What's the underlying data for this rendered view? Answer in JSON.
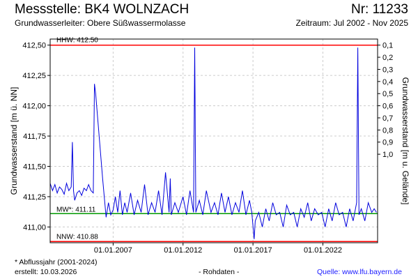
{
  "header": {
    "title_left": "Messstelle: BK4 WOLNZACH",
    "title_right": "Nr: 11233",
    "subtitle_left": "Grundwasserleiter:  Obere Süßwassermolasse",
    "subtitle_right": "Zeitraum: Jul 2002 - Nov 2025"
  },
  "footer": {
    "note": "* Abflussjahr (2001-2024)",
    "created": "erstellt:  10.03.2026",
    "center": "- Rohdaten -",
    "source": "Quelle:  www.lfu.bayern.de"
  },
  "colors": {
    "series": "#0000dd",
    "hhw_line": "#ff0000",
    "nnw_line": "#ff0000",
    "mw_line": "#009900",
    "grid": "#cccccc"
  },
  "chart_data": {
    "type": "line",
    "ylabel": "Grundwasserstand [m ü. NN]",
    "y2label": "Grundwasserstand [m u. Gelände]",
    "ylim": [
      410.87,
      412.55
    ],
    "xlim": [
      "2002-07-01",
      "2025-11-30"
    ],
    "yticks": [
      {
        "value": 411.0,
        "label": "411,00"
      },
      {
        "value": 411.25,
        "label": "411,25"
      },
      {
        "value": 411.5,
        "label": "411,50"
      },
      {
        "value": 411.75,
        "label": "411,75"
      },
      {
        "value": 412.0,
        "label": "412,00"
      },
      {
        "value": 412.25,
        "label": "412,25"
      },
      {
        "value": 412.5,
        "label": "412,50"
      }
    ],
    "y2ticks": [
      {
        "value": 412.5,
        "label": "0,1"
      },
      {
        "value": 412.4,
        "label": "0,2"
      },
      {
        "value": 412.3,
        "label": "0,3"
      },
      {
        "value": 412.2,
        "label": "0,4"
      },
      {
        "value": 412.1,
        "label": "0,5"
      },
      {
        "value": 412.0,
        "label": "0,6"
      },
      {
        "value": 411.9,
        "label": "0,7"
      },
      {
        "value": 411.8,
        "label": "0,8"
      },
      {
        "value": 411.7,
        "label": "0,9"
      },
      {
        "value": 411.6,
        "label": "1,0"
      }
    ],
    "xticks": [
      {
        "value": "2007-01-01",
        "label": "01.01.2007"
      },
      {
        "value": "2012-01-01",
        "label": "01.01.2012"
      },
      {
        "value": "2017-01-01",
        "label": "01.01.2017"
      },
      {
        "value": "2022-01-01",
        "label": "01.01.2022"
      }
    ],
    "reference_lines": [
      {
        "name": "HHW",
        "label": "HHW: 412.50",
        "value": 412.5
      },
      {
        "name": "MW",
        "label": "MW*: 411.11",
        "value": 411.11
      },
      {
        "name": "NNW",
        "label": "NNW: 410.88",
        "value": 410.88
      }
    ],
    "grid": true,
    "series": [
      {
        "x": [
          "2002-07-01",
          "2002-09-01",
          "2002-11-01",
          "2003-01-01",
          "2003-03-01",
          "2003-05-01",
          "2003-07-01",
          "2003-09-01",
          "2003-11-01",
          "2004-01-01",
          "2004-02-01",
          "2004-03-01",
          "2004-04-01",
          "2004-06-01",
          "2004-08-01",
          "2004-10-01",
          "2004-12-01",
          "2005-02-01",
          "2005-04-01",
          "2005-06-01",
          "2005-08-01",
          "2005-09-01",
          "2005-10-01",
          "2006-01-01",
          "2006-04-01",
          "2006-07-01",
          "2006-09-01",
          "2006-11-01",
          "2007-01-01",
          "2007-03-01",
          "2007-05-01",
          "2007-07-01",
          "2007-09-01",
          "2007-11-01",
          "2008-01-01",
          "2008-04-01",
          "2008-07-01",
          "2008-10-01",
          "2009-01-01",
          "2009-04-01",
          "2009-07-01",
          "2009-10-01",
          "2010-01-01",
          "2010-04-01",
          "2010-07-01",
          "2010-10-01",
          "2011-01-01",
          "2011-02-01",
          "2011-03-01",
          "2011-06-01",
          "2011-09-01",
          "2012-01-01",
          "2012-04-01",
          "2012-07-01",
          "2012-10-01",
          "2012-11-01",
          "2012-12-01",
          "2013-03-01",
          "2013-06-01",
          "2013-09-01",
          "2014-01-01",
          "2014-04-01",
          "2014-07-01",
          "2014-10-01",
          "2015-01-01",
          "2015-04-01",
          "2015-07-01",
          "2015-10-01",
          "2016-01-01",
          "2016-04-01",
          "2016-07-01",
          "2016-10-01",
          "2016-12-01",
          "2017-02-01",
          "2017-03-01",
          "2017-06-01",
          "2017-09-01",
          "2017-12-01",
          "2018-03-01",
          "2018-06-01",
          "2018-09-01",
          "2018-12-01",
          "2019-03-01",
          "2019-06-01",
          "2019-09-01",
          "2019-12-01",
          "2020-03-01",
          "2020-06-01",
          "2020-09-01",
          "2020-12-01",
          "2021-03-01",
          "2021-06-01",
          "2021-09-01",
          "2021-12-01",
          "2022-03-01",
          "2022-06-01",
          "2022-09-01",
          "2022-12-01",
          "2023-03-01",
          "2023-06-01",
          "2023-09-01",
          "2023-12-01",
          "2024-03-01",
          "2024-06-01",
          "2024-07-01",
          "2024-08-01",
          "2024-10-01",
          "2025-01-01",
          "2025-04-01",
          "2025-07-01",
          "2025-09-01",
          "2025-11-01"
        ],
        "values": [
          411.36,
          411.3,
          411.35,
          411.28,
          411.33,
          411.31,
          411.27,
          411.36,
          411.3,
          411.33,
          411.7,
          411.3,
          411.22,
          411.28,
          411.3,
          411.26,
          411.32,
          411.3,
          411.35,
          411.3,
          411.28,
          412.18,
          412.1,
          411.75,
          411.4,
          411.08,
          411.2,
          411.1,
          411.14,
          411.25,
          411.12,
          411.3,
          411.1,
          411.2,
          411.12,
          411.28,
          411.1,
          411.22,
          411.12,
          411.35,
          411.1,
          411.2,
          411.12,
          411.3,
          411.1,
          411.45,
          411.12,
          411.4,
          411.1,
          411.2,
          411.12,
          411.25,
          411.1,
          411.3,
          411.12,
          412.48,
          411.12,
          411.22,
          411.1,
          411.3,
          411.12,
          411.2,
          411.1,
          411.28,
          411.12,
          411.25,
          411.1,
          411.2,
          411.12,
          411.3,
          411.1,
          411.22,
          411.12,
          410.9,
          411.05,
          411.12,
          411.0,
          411.15,
          411.05,
          411.2,
          411.1,
          411.12,
          411.0,
          411.18,
          411.1,
          411.12,
          411.0,
          411.15,
          411.08,
          411.2,
          411.05,
          411.15,
          411.1,
          411.12,
          411.0,
          411.15,
          411.05,
          411.2,
          411.1,
          411.12,
          411.0,
          411.15,
          411.05,
          411.2,
          412.48,
          411.1,
          411.15,
          411.05,
          411.2,
          411.12,
          411.15,
          411.12
        ]
      }
    ]
  }
}
